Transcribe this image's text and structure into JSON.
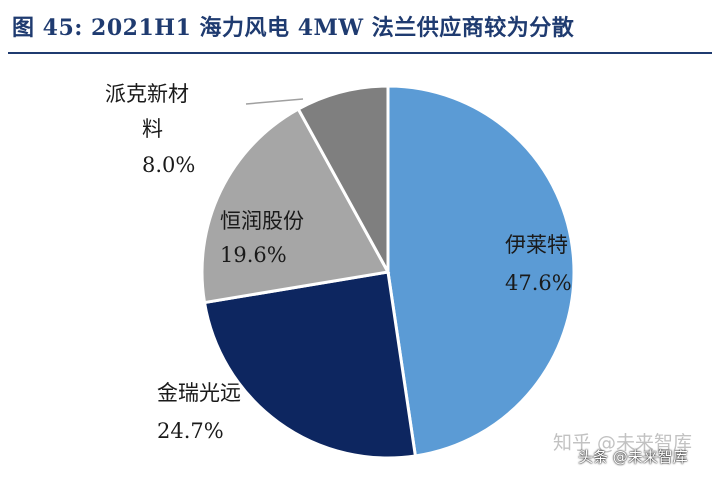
{
  "title": "图 45:  2021H1 海力风电 4MW 法兰供应商较为分散",
  "chart_data": {
    "type": "pie",
    "title": "图 45:  2021H1 海力风电 4MW 法兰供应商较为分散",
    "slices": [
      {
        "label": "伊莱特",
        "value": 47.6,
        "value_text": "47.6%",
        "color": "#5b9bd5"
      },
      {
        "label": "金瑞光远",
        "value": 24.7,
        "value_text": "24.7%",
        "color": "#0d2660"
      },
      {
        "label": "恒润股份",
        "value": 19.6,
        "value_text": "19.6%",
        "color": "#a6a6a6"
      },
      {
        "label": "派克新材料",
        "value": 8.0,
        "value_text": "8.0%",
        "color": "#7f7f7f"
      }
    ],
    "start_angle": "12 o'clock",
    "direction": "clockwise",
    "legend": "none"
  },
  "watermarks": {
    "zhihu": "知乎 @未来智库",
    "toutiao": "头条 @未来智库"
  }
}
